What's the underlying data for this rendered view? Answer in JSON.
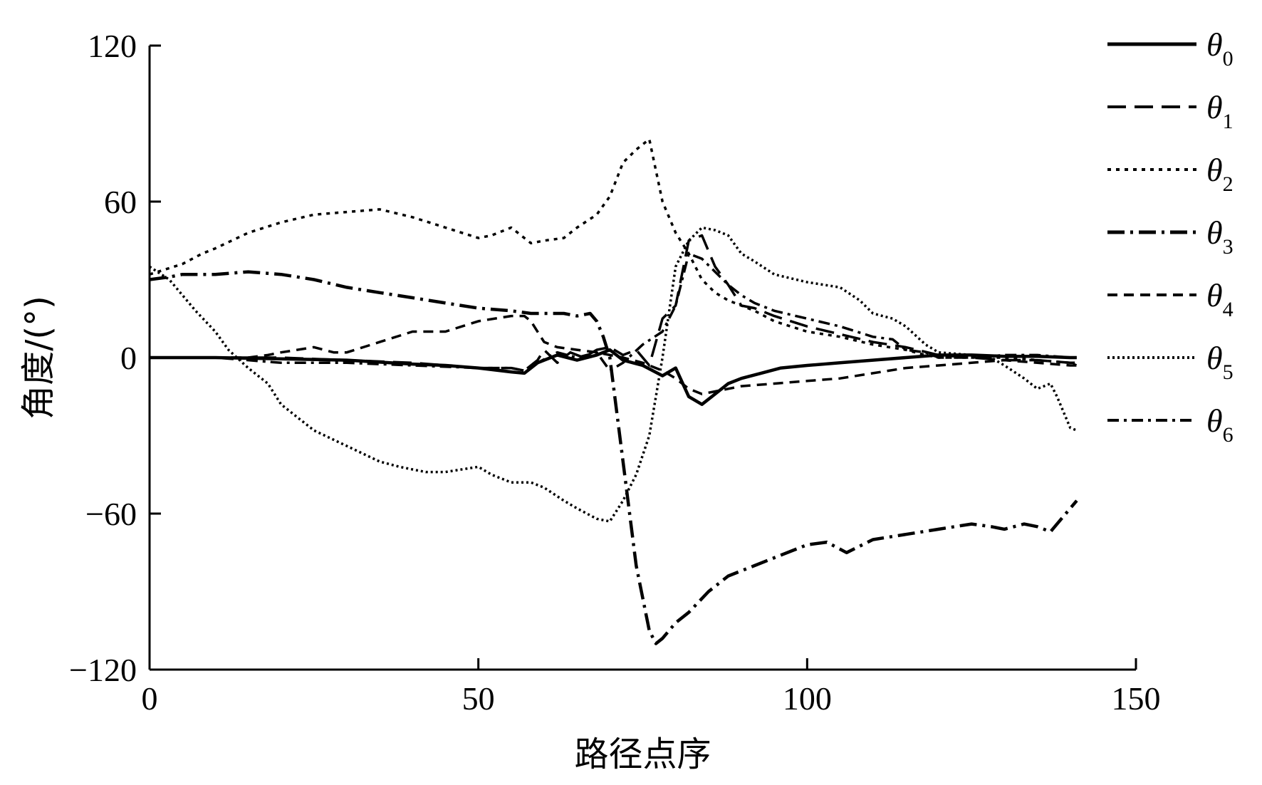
{
  "chart_data": {
    "type": "line",
    "title": "",
    "xlabel": "路径点序",
    "ylabel": "角度/(°)",
    "xlim": [
      0,
      150
    ],
    "ylim": [
      -120,
      120
    ],
    "xticks": [
      0,
      50,
      100,
      150
    ],
    "yticks": [
      -120,
      -60,
      0,
      60,
      120
    ],
    "xtick_labels": [
      "0",
      "50",
      "100",
      "150"
    ],
    "ytick_labels": [
      "−120",
      "−60",
      "0",
      "60",
      "120"
    ],
    "grid": false,
    "legend_position": "right",
    "series": [
      {
        "name": "θ0",
        "legend_symbol": "θ",
        "legend_sub": "0",
        "style": "solid",
        "x": [
          0,
          10,
          20,
          30,
          40,
          45,
          50,
          55,
          57,
          59,
          62,
          65,
          68,
          70,
          72,
          75,
          78,
          80,
          82,
          84,
          86,
          88,
          90,
          93,
          96,
          100,
          105,
          110,
          115,
          120,
          125,
          130,
          135,
          140,
          141
        ],
        "y": [
          0,
          0,
          -0.5,
          -1,
          -2.5,
          -3,
          -4,
          -5.5,
          -6,
          -2,
          1,
          -1,
          1,
          3,
          -1,
          -3,
          -7,
          -4,
          -15,
          -18,
          -14,
          -10,
          -8,
          -6,
          -4,
          -3,
          -2,
          -1,
          0,
          1,
          1,
          0.5,
          0.5,
          0,
          0
        ]
      },
      {
        "name": "θ1",
        "legend_symbol": "θ",
        "legend_sub": "1",
        "style": "longdash",
        "x": [
          0,
          5,
          10,
          20,
          30,
          40,
          50,
          55,
          57,
          59,
          60,
          62,
          64,
          66,
          68,
          70,
          72,
          74,
          76,
          78,
          80,
          82,
          84,
          86,
          88,
          90,
          92,
          95,
          100,
          105,
          110,
          115,
          120,
          125,
          130,
          135,
          140,
          141
        ],
        "y": [
          0,
          0,
          0,
          0,
          -1,
          -2,
          -4,
          -4,
          -5,
          -1,
          3,
          -2,
          2,
          0,
          3,
          4,
          1,
          3,
          -3,
          15,
          20,
          45,
          47,
          35,
          28,
          20,
          19,
          16,
          12,
          9,
          6,
          4,
          1,
          0,
          -1,
          -1,
          -2,
          -2
        ]
      },
      {
        "name": "θ2",
        "legend_symbol": "θ",
        "legend_sub": "2",
        "style": "dotted",
        "x": [
          0,
          5,
          8,
          10,
          15,
          20,
          25,
          30,
          35,
          40,
          45,
          50,
          52,
          55,
          58,
          60,
          63,
          65,
          68,
          70,
          72,
          74,
          76,
          78,
          80,
          82,
          84,
          86,
          88,
          90,
          92,
          95,
          100,
          105,
          110,
          115,
          118,
          120,
          125,
          130,
          135,
          140,
          141
        ],
        "y": [
          32,
          36,
          40,
          42,
          48,
          52,
          55,
          56,
          57,
          54,
          50,
          46,
          47,
          50,
          44,
          45,
          46,
          50,
          55,
          62,
          75,
          80,
          84,
          60,
          48,
          40,
          30,
          25,
          22,
          20,
          18,
          14,
          10,
          8,
          5,
          3,
          1,
          0,
          0,
          0,
          -1,
          -2,
          -3
        ]
      },
      {
        "name": "θ3",
        "legend_symbol": "θ",
        "legend_sub": "3",
        "style": "dashdot-long",
        "x": [
          0,
          3,
          5,
          10,
          15,
          20,
          25,
          30,
          35,
          40,
          45,
          50,
          55,
          58,
          60,
          63,
          65,
          67,
          68,
          69,
          70,
          72,
          74,
          76,
          77,
          78,
          80,
          82,
          85,
          88,
          90,
          92,
          95,
          100,
          103,
          106,
          110,
          115,
          120,
          125,
          128,
          130,
          133,
          135,
          137,
          138,
          141
        ],
        "y": [
          30,
          31,
          32,
          32,
          33,
          32,
          30,
          27,
          25,
          23,
          21,
          19,
          18,
          17,
          17,
          17,
          16,
          17,
          14,
          8,
          0,
          -40,
          -80,
          -105,
          -110,
          -108,
          -102,
          -98,
          -90,
          -84,
          -82,
          -80,
          -77,
          -72,
          -71,
          -75,
          -70,
          -68,
          -66,
          -64,
          -65,
          -66,
          -64,
          -65,
          -67,
          -64,
          -55
        ]
      },
      {
        "name": "θ4",
        "legend_symbol": "θ",
        "legend_sub": "4",
        "style": "dashed",
        "x": [
          0,
          10,
          15,
          18,
          20,
          25,
          28,
          30,
          35,
          40,
          45,
          50,
          55,
          57,
          58,
          60,
          62,
          65,
          68,
          70,
          72,
          75,
          78,
          80,
          82,
          84,
          86,
          88,
          90,
          95,
          100,
          105,
          110,
          115,
          120,
          125,
          130,
          135,
          140,
          141
        ],
        "y": [
          0,
          0,
          0,
          1,
          2,
          4,
          2,
          2,
          6,
          10,
          10,
          14,
          16,
          16,
          14,
          6,
          4,
          3,
          2,
          1,
          0,
          -2,
          -5,
          -8,
          -12,
          -14,
          -13,
          -12,
          -11,
          -10,
          -9,
          -8,
          -6,
          -4,
          -3,
          -2,
          -1,
          -2,
          -3,
          -3
        ]
      },
      {
        "name": "θ5",
        "legend_symbol": "θ",
        "legend_sub": "5",
        "style": "fine-dotted",
        "x": [
          0,
          3,
          5,
          7,
          10,
          12,
          15,
          18,
          20,
          25,
          30,
          35,
          38,
          40,
          42,
          45,
          50,
          52,
          55,
          58,
          60,
          63,
          65,
          68,
          70,
          72,
          74,
          76,
          78,
          80,
          82,
          84,
          86,
          88,
          90,
          92,
          95,
          100,
          105,
          108,
          110,
          113,
          115,
          118,
          120,
          125,
          128,
          130,
          133,
          135,
          137,
          138,
          140,
          141
        ],
        "y": [
          35,
          30,
          24,
          18,
          10,
          3,
          -4,
          -10,
          -18,
          -28,
          -34,
          -40,
          -42,
          -43,
          -44,
          -44,
          -42,
          -45,
          -48,
          -48,
          -50,
          -55,
          -58,
          -62,
          -63,
          -55,
          -45,
          -30,
          0,
          35,
          45,
          50,
          49,
          47,
          40,
          37,
          32,
          29,
          27,
          22,
          17,
          15,
          12,
          5,
          2,
          1,
          0,
          -3,
          -8,
          -12,
          -10,
          -15,
          -27,
          -28
        ]
      },
      {
        "name": "θ6",
        "legend_symbol": "θ",
        "legend_sub": "6",
        "style": "dashdot",
        "x": [
          0,
          10,
          20,
          30,
          40,
          50,
          55,
          57,
          59,
          62,
          65,
          68,
          70,
          72,
          75,
          78,
          80,
          82,
          84,
          86,
          88,
          90,
          92,
          95,
          100,
          105,
          110,
          113,
          115,
          118,
          120,
          125,
          130,
          135,
          140,
          141
        ],
        "y": [
          0,
          0,
          -2,
          -2,
          -3,
          -4,
          -4,
          -5,
          -2,
          2,
          0,
          2,
          -5,
          -2,
          5,
          10,
          20,
          40,
          38,
          33,
          28,
          24,
          21,
          18,
          15,
          12,
          8,
          7,
          3,
          2,
          0,
          0,
          1,
          1,
          0,
          0
        ]
      }
    ]
  }
}
